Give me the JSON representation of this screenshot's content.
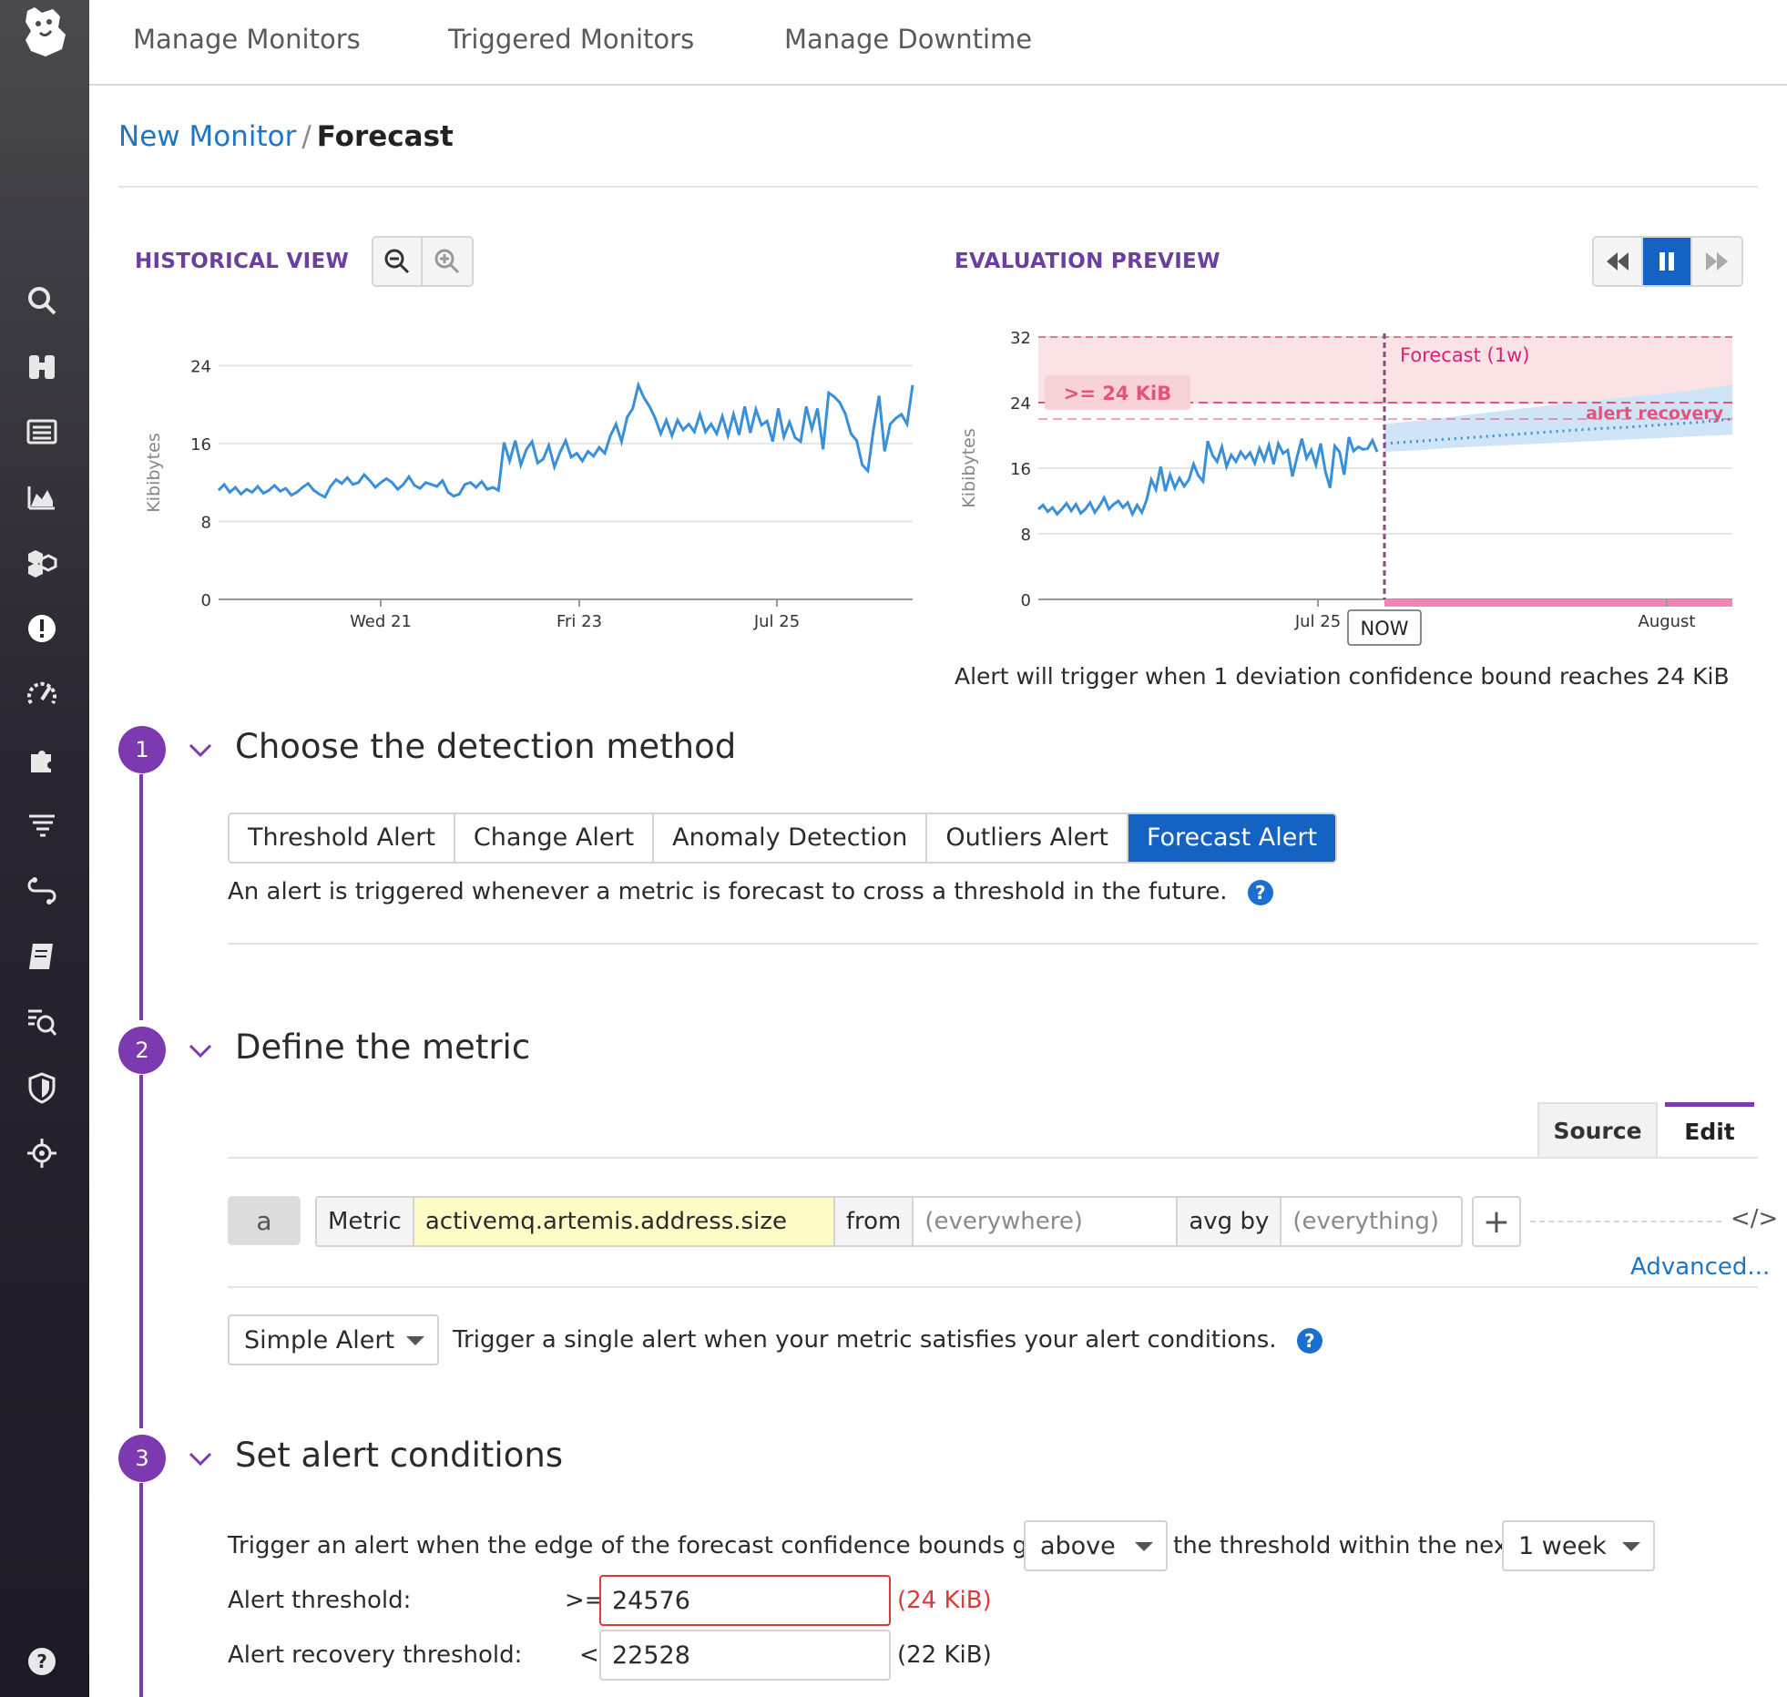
{
  "nav": {
    "tabs": [
      "Manage Monitors",
      "Triggered Monitors",
      "Manage Downtime"
    ]
  },
  "breadcrumb": {
    "parent": "New Monitor",
    "separator": "/",
    "current": "Forecast"
  },
  "historical": {
    "label": "HISTORICAL VIEW",
    "zoom_out_icon": "zoom-out-icon",
    "zoom_in_icon": "zoom-in-icon"
  },
  "evaluation": {
    "label": "EVALUATION PREVIEW",
    "caption": "Alert will trigger when 1 deviation confidence bound reaches 24 KiB",
    "forecast_label": "Forecast (1w)",
    "threshold_label": ">= 24 KiB",
    "recovery_label": "alert recovery",
    "now_label": "NOW"
  },
  "chart_data": [
    {
      "type": "line",
      "title": "",
      "ylabel": "Kibibytes",
      "xlabel": "",
      "ylim": [
        0,
        26
      ],
      "yticks": [
        0,
        8,
        16,
        24
      ],
      "xticks": [
        "Wed 21",
        "Fri 23",
        "Jul 25"
      ],
      "series": [
        {
          "values": [
            11.2,
            11.8,
            11.0,
            11.5,
            10.8,
            11.3,
            11.0,
            11.6,
            10.9,
            11.2,
            11.7,
            11.1,
            11.4,
            10.7,
            11.0,
            11.5,
            11.9,
            11.2,
            10.8,
            10.5,
            11.6,
            12.3,
            11.9,
            12.5,
            11.8,
            12.0,
            12.8,
            12.2,
            11.5,
            12.0,
            12.4,
            12.0,
            11.3,
            11.8,
            12.6,
            11.7,
            11.4,
            12.0,
            11.8,
            11.6,
            12.2,
            11.0,
            10.6,
            10.8,
            11.8,
            12.0,
            11.5,
            12.1,
            11.3,
            11.5,
            11.2,
            16.1,
            14.2,
            16.3,
            13.8,
            15.4,
            16.2,
            14.0,
            14.4,
            15.8,
            13.6,
            15.1,
            16.3,
            14.6,
            15.0,
            14.2,
            15.2,
            14.7,
            15.6,
            15.0,
            16.8,
            18.0,
            16.2,
            18.7,
            19.6,
            22.0,
            20.7,
            19.8,
            18.6,
            17.0,
            18.4,
            16.8,
            18.4,
            17.4,
            18.0,
            17.2,
            19.0,
            17.2,
            18.0,
            17.0,
            18.8,
            16.8,
            19.0,
            16.9,
            19.8,
            17.1,
            19.5,
            17.9,
            18.3,
            16.2,
            19.6,
            16.7,
            18.2,
            16.6,
            16.2,
            19.8,
            17.5,
            19.6,
            15.4,
            21.2,
            20.8,
            20.2,
            19.0,
            17.0,
            16.3,
            13.8,
            13.2,
            17.4,
            20.9,
            15.2,
            18.0,
            18.6,
            19.0,
            18.0,
            22.0
          ]
        }
      ]
    },
    {
      "type": "line",
      "title": "",
      "ylabel": "Kibibytes",
      "ylim": [
        0,
        32
      ],
      "yticks": [
        0,
        8,
        16,
        24,
        32
      ],
      "xticks": [
        "Jul 25",
        "August"
      ],
      "threshold": 24,
      "recovery": 22,
      "series": [
        {
          "name": "history",
          "values": [
            11.0,
            11.5,
            10.7,
            11.2,
            10.4,
            11.0,
            11.7,
            10.8,
            11.6,
            10.5,
            11.0,
            11.8,
            10.6,
            11.4,
            12.4,
            11.0,
            11.6,
            12.0,
            11.2,
            11.8,
            10.4,
            11.5,
            10.6,
            12.1,
            14.6,
            13.4,
            16.2,
            13.2,
            15.2,
            13.6,
            14.8,
            13.8,
            14.6,
            16.5,
            15.1,
            14.4,
            19.3,
            17.6,
            16.8,
            18.6,
            16.2,
            17.6,
            16.8,
            18.0,
            17.2,
            17.9,
            16.6,
            18.4,
            17.0,
            18.8,
            16.5,
            19.0,
            17.8,
            18.2,
            15.0,
            17.4,
            19.6,
            17.2,
            18.2,
            16.4,
            19.0,
            15.6,
            13.6,
            18.7,
            18.0,
            15.2,
            19.8,
            18.1,
            18.6,
            18.3,
            18.4,
            19.4,
            18.0
          ]
        },
        {
          "name": "forecast",
          "values": [
            19.0,
            19.3,
            19.6,
            19.9,
            20.2,
            20.5,
            20.8,
            21.0,
            21.3,
            21.6,
            22.0
          ]
        },
        {
          "name": "forecast-upper",
          "values": [
            21.4,
            21.8,
            22.3,
            22.8,
            23.3,
            23.8,
            24.2,
            24.7,
            25.1,
            25.6,
            26.2
          ]
        },
        {
          "name": "forecast-lower",
          "values": [
            18.0,
            18.2,
            18.5,
            18.7,
            18.9,
            19.1,
            19.3,
            19.5,
            19.7,
            19.9,
            20.1
          ]
        }
      ]
    }
  ],
  "step1": {
    "num": "1",
    "title": "Choose the detection method",
    "tabs": [
      "Threshold Alert",
      "Change Alert",
      "Anomaly Detection",
      "Outliers Alert",
      "Forecast Alert"
    ],
    "active_tab": "Forecast Alert",
    "description": "An alert is triggered whenever a metric is forecast to cross a threshold in the future.",
    "help": "?"
  },
  "step2": {
    "num": "2",
    "title": "Define the metric",
    "source_tab": "Source",
    "edit_tab": "Edit",
    "query": {
      "letter": "a",
      "metric_label": "Metric",
      "metric_value": "activemq.artemis.address.size",
      "from_label": "from",
      "from_placeholder": "(everywhere)",
      "avg_label": "avg by",
      "avg_placeholder": "(everything)",
      "plus": "+",
      "code": "</>"
    },
    "advanced": "Advanced...",
    "alert_type": "Simple Alert",
    "alert_type_desc": "Trigger a single alert when your metric satisfies your alert conditions.",
    "help": "?"
  },
  "step3": {
    "num": "3",
    "title": "Set alert conditions",
    "trigger_prefix": "Trigger an alert when the edge of the forecast confidence bounds goes",
    "direction": "above",
    "trigger_middle": "the threshold within the next",
    "window": "1 week",
    "alert_threshold_label": "Alert threshold:",
    "alert_threshold_op": ">=",
    "alert_threshold_value": "24576",
    "alert_threshold_unit": "(24 KiB)",
    "recovery_threshold_label": "Alert recovery threshold:",
    "recovery_threshold_op": "<",
    "recovery_threshold_value": "22528",
    "recovery_threshold_unit": "(22 KiB)"
  },
  "colors": {
    "accent": "#7d3ab0",
    "primary": "#1463c3",
    "line": "#3a8fd9",
    "alert": "#e5537a"
  }
}
